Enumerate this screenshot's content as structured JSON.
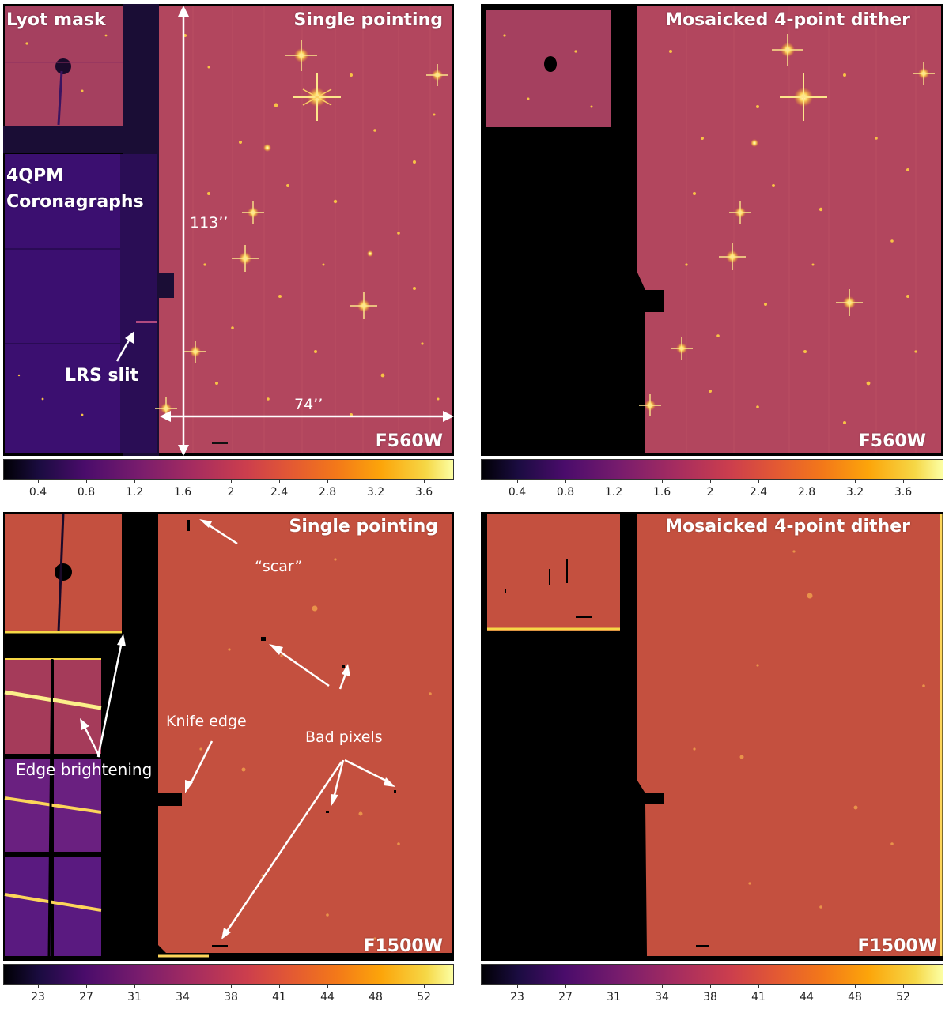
{
  "panels": {
    "top_left": {
      "title": "Single pointing",
      "region_label": "Lyot mask",
      "coron_label_line1": "4QPM",
      "coron_label_line2": "Coronagraphs",
      "slit_label": "LRS slit",
      "height_label": "113’’",
      "width_label": "74’’",
      "filter": "F560W"
    },
    "top_right": {
      "title": "Mosaicked 4-point dither",
      "filter": "F560W"
    },
    "bottom_left": {
      "title": "Single pointing",
      "scar_label": "“scar”",
      "knife_label": "Knife edge",
      "bad_pixels_label": "Bad pixels",
      "edge_label": "Edge brightening",
      "filter": "F1500W"
    },
    "bottom_right": {
      "title": "Mosaicked 4-point dither",
      "filter": "F1500W"
    }
  },
  "colorbars": {
    "top": {
      "ticks": [
        "0.4",
        "0.8",
        "1.2",
        "1.6",
        "2",
        "2.4",
        "2.8",
        "3.2",
        "3.6"
      ]
    },
    "bottom": {
      "ticks": [
        "23",
        "27",
        "31",
        "34",
        "38",
        "41",
        "44",
        "48",
        "52"
      ]
    }
  },
  "colors": {
    "f560w_background": "#b2465e",
    "f1500w_background": "#c4503f",
    "coronagraph_region": "#3b0f70"
  }
}
